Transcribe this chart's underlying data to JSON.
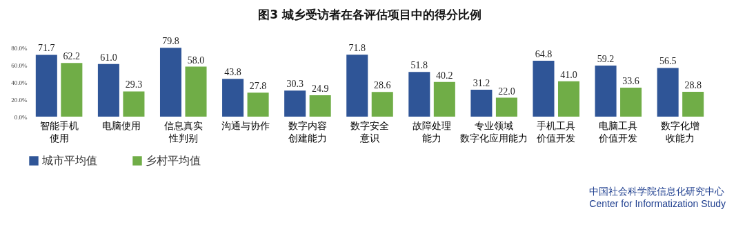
{
  "chart_data": {
    "type": "bar",
    "title": "图3 城乡受访者在各评估项目中的得分比例",
    "categories": [
      "智能手机使用",
      "电脑使用",
      "信息真实性判别",
      "沟通与协作",
      "数字内容创建能力",
      "数字安全意识",
      "故障处理能力",
      "专业领域数字化应用能力",
      "手机工具价值开发",
      "电脑工具价值开发",
      "数字化增收能力"
    ],
    "series": [
      {
        "name": "城市平均值",
        "color": "#2f5597",
        "values": [
          71.7,
          61.0,
          79.8,
          43.8,
          30.3,
          71.8,
          51.8,
          31.2,
          64.8,
          59.2,
          56.5
        ],
        "value_labels": [
          "71.7",
          "61.0",
          "79.8",
          "43.8",
          "30.3",
          "71.8",
          "51.8",
          "31.2",
          "64.8",
          "59.2",
          "56.5"
        ]
      },
      {
        "name": "乡村平均值",
        "color": "#70ad47",
        "values": [
          62.2,
          29.3,
          58.0,
          27.8,
          24.9,
          28.6,
          40.2,
          22.0,
          41.0,
          33.6,
          28.8
        ],
        "value_labels": [
          "62.2",
          "29.3",
          "58.0",
          "27.8",
          "24.9",
          "28.6",
          "40.2",
          "22.0",
          "41.0",
          "33.6",
          "28.8"
        ]
      }
    ],
    "ylim": [
      0,
      80
    ],
    "yticks": [
      {
        "value": 0,
        "label": "0.0%"
      },
      {
        "value": 20,
        "label": "20.0%"
      },
      {
        "value": 40,
        "label": "40.0%"
      },
      {
        "value": 60,
        "label": "60.0%"
      },
      {
        "value": 80,
        "label": "80.0%"
      }
    ],
    "grid": false,
    "legend": "bottom",
    "annotations": [
      "中国社会科学院信息化研究中心",
      "Center for Informatization Study"
    ]
  }
}
